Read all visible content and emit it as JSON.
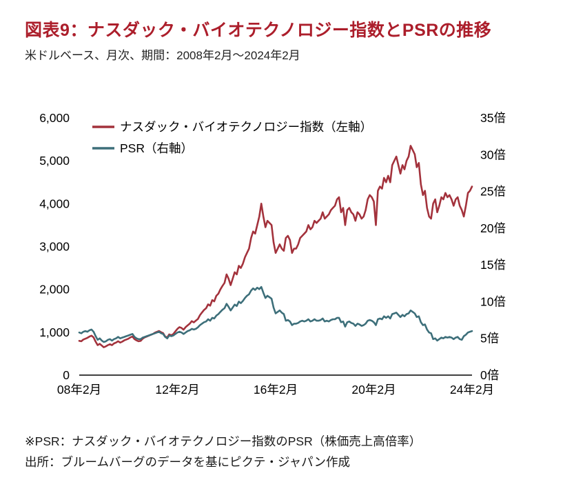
{
  "header": {
    "title": "図表9：ナスダック・バイオテクノロジー指数とPSRの推移",
    "subtitle": "米ドルベース、月次、期間：2008年2月～2024年2月"
  },
  "colors": {
    "title_red": "#ac1e2b",
    "index_line_red": "#a3323c",
    "psr_line_teal": "#3d6f7a"
  },
  "chart_data": {
    "type": "line",
    "title": "図表9：ナスダック・バイオテクノロジー指数とPSRの推移",
    "x_unit": "month",
    "x_start": "2008-02",
    "x_end": "2024-02",
    "grid": false,
    "legend_position": "top-left-inside",
    "x_ticks": [
      {
        "index": 0,
        "label": "08年2月"
      },
      {
        "index": 48,
        "label": "12年2月"
      },
      {
        "index": 96,
        "label": "16年2月"
      },
      {
        "index": 144,
        "label": "20年2月"
      },
      {
        "index": 192,
        "label": "24年2月"
      }
    ],
    "y_left": {
      "min": 0,
      "max": 6000,
      "ticks": [
        {
          "value": 0,
          "label": "0"
        },
        {
          "value": 1000,
          "label": "1,000"
        },
        {
          "value": 2000,
          "label": "2,000"
        },
        {
          "value": 3000,
          "label": "3,000"
        },
        {
          "value": 4000,
          "label": "4,000"
        },
        {
          "value": 5000,
          "label": "5,000"
        },
        {
          "value": 6000,
          "label": "6,000"
        }
      ]
    },
    "y_right": {
      "min": 0,
      "max": 35,
      "unit": "倍",
      "ticks": [
        {
          "value": 0,
          "label": "0倍"
        },
        {
          "value": 5,
          "label": "5倍"
        },
        {
          "value": 10,
          "label": "10倍"
        },
        {
          "value": 15,
          "label": "15倍"
        },
        {
          "value": 20,
          "label": "20倍"
        },
        {
          "value": 25,
          "label": "25倍"
        },
        {
          "value": 30,
          "label": "30倍"
        },
        {
          "value": 35,
          "label": "35倍"
        }
      ]
    },
    "series": [
      {
        "id": "index",
        "label": "ナスダック・バイオテクノロジー指数（左軸）",
        "axis": "left",
        "color": "#a3323c",
        "values": [
          800,
          790,
          830,
          850,
          870,
          900,
          920,
          880,
          780,
          700,
          730,
          690,
          650,
          670,
          700,
          720,
          700,
          740,
          760,
          790,
          760,
          780,
          810,
          830,
          850,
          880,
          900,
          840,
          810,
          790,
          800,
          850,
          880,
          900,
          920,
          940,
          960,
          990,
          1010,
          1030,
          1000,
          980,
          900,
          880,
          950,
          930,
          960,
          1020,
          1080,
          1120,
          1100,
          1060,
          1120,
          1160,
          1200,
          1260,
          1230,
          1270,
          1310,
          1400,
          1460,
          1520,
          1560,
          1650,
          1620,
          1750,
          1720,
          1850,
          1900,
          2000,
          2080,
          2150,
          2350,
          2250,
          2100,
          2250,
          2400,
          2350,
          2550,
          2500,
          2600,
          2750,
          2850,
          2950,
          3200,
          3350,
          3300,
          3500,
          3700,
          4000,
          3700,
          3450,
          3600,
          3550,
          3500,
          3100,
          2850,
          2950,
          3050,
          2950,
          2900,
          3200,
          3250,
          3150,
          2850,
          2950,
          2950,
          3050,
          3200,
          3250,
          3300,
          3350,
          3500,
          3400,
          3450,
          3600,
          3550,
          3600,
          3650,
          3800,
          3650,
          3700,
          3750,
          3850,
          3900,
          3950,
          4100,
          4150,
          3800,
          3900,
          3500,
          3850,
          3900,
          3800,
          3750,
          3600,
          3800,
          3750,
          3650,
          3700,
          3850,
          4100,
          4200,
          4150,
          4050,
          3500,
          4300,
          4400,
          4350,
          4600,
          4500,
          4650,
          4500,
          4900,
          5000,
          5100,
          4900,
          4700,
          4900,
          4800,
          5000,
          5100,
          5350,
          5250,
          5150,
          4850,
          4950,
          4450,
          4200,
          4300,
          3900,
          3700,
          3650,
          4000,
          4100,
          3800,
          3950,
          4150,
          4100,
          4250,
          4150,
          4200,
          4100,
          3950,
          4100,
          4150,
          3950,
          3850,
          3700,
          3950,
          4250,
          4300,
          4400
        ]
      },
      {
        "id": "psr",
        "label": "PSR（右軸）",
        "axis": "right",
        "color": "#3d6f7a",
        "values": [
          5.8,
          5.7,
          5.9,
          6.0,
          5.9,
          6.1,
          6.2,
          5.9,
          5.3,
          4.8,
          5.0,
          4.7,
          4.5,
          4.6,
          4.8,
          4.9,
          4.7,
          4.9,
          5.0,
          5.2,
          5.0,
          5.1,
          5.2,
          5.3,
          5.4,
          5.5,
          5.6,
          5.2,
          5.0,
          4.9,
          4.9,
          5.1,
          5.2,
          5.3,
          5.4,
          5.5,
          5.6,
          5.7,
          5.8,
          5.9,
          5.7,
          5.6,
          5.2,
          5.0,
          5.4,
          5.3,
          5.4,
          5.6,
          5.8,
          5.9,
          5.8,
          5.6,
          5.8,
          6.0,
          6.1,
          6.3,
          6.2,
          6.3,
          6.5,
          6.8,
          7.0,
          7.2,
          7.3,
          7.6,
          7.4,
          7.8,
          7.7,
          8.1,
          8.3,
          8.6,
          8.9,
          9.1,
          9.7,
          9.3,
          8.8,
          9.2,
          9.6,
          9.4,
          10.0,
          9.8,
          10.1,
          10.5,
          10.8,
          11.0,
          11.5,
          11.8,
          11.6,
          11.9,
          11.7,
          12.0,
          11.2,
          10.5,
          10.8,
          10.6,
          10.4,
          9.2,
          8.4,
          8.6,
          8.8,
          8.5,
          8.3,
          7.4,
          7.5,
          7.3,
          6.8,
          7.0,
          7.0,
          7.1,
          7.3,
          7.4,
          7.3,
          7.4,
          7.6,
          7.3,
          7.4,
          7.6,
          7.4,
          7.4,
          7.5,
          7.7,
          7.3,
          7.4,
          7.3,
          7.5,
          7.6,
          7.6,
          7.8,
          7.8,
          7.2,
          7.3,
          6.6,
          7.2,
          7.3,
          7.1,
          7.0,
          6.7,
          7.0,
          6.9,
          6.7,
          6.8,
          7.0,
          7.4,
          7.5,
          7.4,
          7.2,
          6.8,
          7.6,
          7.7,
          7.6,
          8.0,
          7.8,
          8.0,
          7.7,
          8.3,
          8.4,
          8.5,
          8.2,
          7.9,
          8.2,
          8.0,
          8.3,
          8.4,
          8.8,
          8.6,
          8.4,
          7.9,
          8.0,
          7.2,
          6.8,
          6.9,
          6.2,
          5.8,
          5.7,
          4.9,
          5.0,
          4.7,
          4.9,
          5.1,
          5.0,
          5.2,
          5.1,
          5.2,
          5.1,
          4.9,
          5.1,
          5.2,
          4.9,
          4.8,
          5.3,
          5.5,
          5.8,
          5.9,
          6.0
        ]
      }
    ]
  },
  "footnotes": {
    "note": "※PSR：ナスダック・バイオテクノロジー指数のPSR（株価売上高倍率）",
    "source": "出所：ブルームバーグのデータを基にピクテ・ジャパン作成"
  }
}
